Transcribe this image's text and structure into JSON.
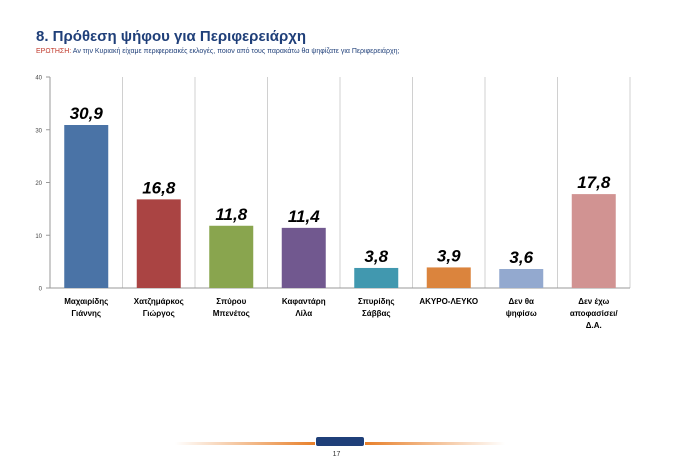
{
  "header": {
    "title": "8. Πρόθεση ψήφου για Περιφερειάρχη",
    "question_label": "ΕΡΩΤΗΣΗ:",
    "question_text": "Αν την Κυριακή είχαμε περιφερειακές εκλογές, ποιον από τους παρακάτω θα ψηφίζατε για Περιφερειάρχη;"
  },
  "footer": {
    "page_number": "17"
  },
  "chart_data": {
    "type": "bar",
    "categories": [
      [
        "Μαχαιρίδης",
        "Γιάννης"
      ],
      [
        "Χατζημάρκος",
        "Γιώργος"
      ],
      [
        "Σπύρου",
        "Μπενέτος"
      ],
      [
        "Καφαντάρη",
        "Λίλα"
      ],
      [
        "Σπυρίδης",
        "Σάββας"
      ],
      [
        "ΑΚΥΡΟ-ΛΕΥΚΟ"
      ],
      [
        "Δεν θα",
        "ψηφίσω"
      ],
      [
        "Δεν έχω",
        "αποφασίσει/",
        "Δ.Α."
      ]
    ],
    "values": [
      30.9,
      16.8,
      11.8,
      11.4,
      3.8,
      3.9,
      3.6,
      17.8
    ],
    "value_labels": [
      "30,9",
      "16,8",
      "11,8",
      "11,4",
      "3,8",
      "3,9",
      "3,6",
      "17,8"
    ],
    "colors": [
      "#4a73a6",
      "#aa4443",
      "#89a54e",
      "#71588f",
      "#4198af",
      "#db843d",
      "#93a9cf",
      "#d19392"
    ],
    "ylim": [
      0,
      40
    ],
    "yticks": [
      "0",
      "10",
      "20",
      "30",
      "40"
    ],
    "title": "",
    "xlabel": "",
    "ylabel": "",
    "grid": false,
    "legend": false
  }
}
